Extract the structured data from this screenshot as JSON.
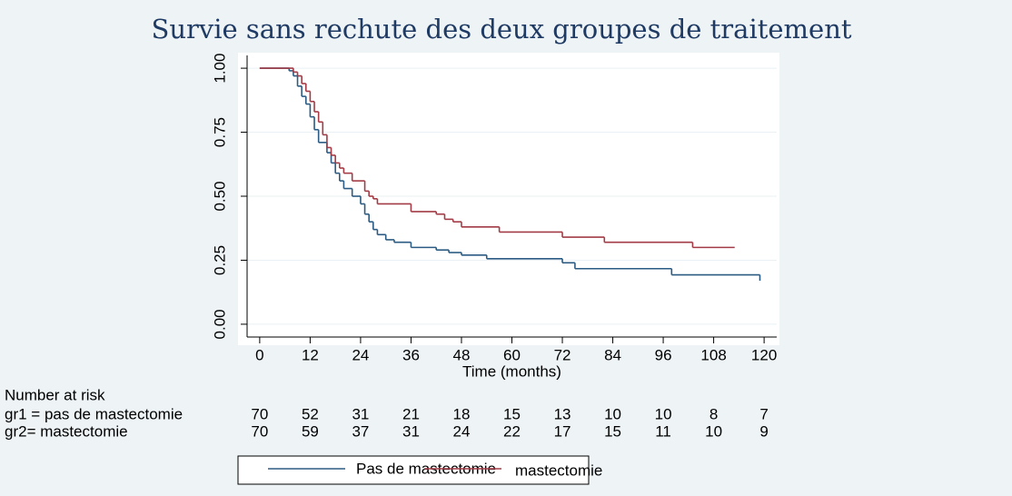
{
  "chart_data": {
    "type": "km-step",
    "title": "Survie sans rechute des deux groupes de traitement",
    "xlabel": "Time (months)",
    "xlim": [
      -3,
      123
    ],
    "ylim": [
      -0.05,
      1.05
    ],
    "xticks": [
      0,
      12,
      24,
      36,
      48,
      60,
      72,
      84,
      96,
      108,
      120
    ],
    "yticks": [
      {
        "value": 0,
        "label": "0.00"
      },
      0.25,
      {
        "value": 0.5,
        "label": "0.50"
      },
      0.75,
      {
        "value": 1,
        "label": "1.00"
      }
    ],
    "grid": true,
    "series": [
      {
        "name": "Pas de mastectomie",
        "color": "#2b5b82",
        "x": [
          0,
          7,
          8,
          9,
          10,
          11,
          12,
          13,
          14,
          16,
          17,
          18,
          19,
          20,
          22,
          24,
          25,
          26,
          27,
          28,
          30,
          32,
          36,
          42,
          45,
          48,
          54,
          72,
          75,
          98,
          119
        ],
        "values": [
          1.0,
          0.99,
          0.97,
          0.93,
          0.89,
          0.86,
          0.81,
          0.76,
          0.71,
          0.67,
          0.63,
          0.59,
          0.56,
          0.53,
          0.5,
          0.47,
          0.43,
          0.4,
          0.37,
          0.35,
          0.33,
          0.32,
          0.3,
          0.29,
          0.28,
          0.27,
          0.256,
          0.24,
          0.217,
          0.193,
          0.17
        ]
      },
      {
        "name": "mastectomie",
        "color": "#a23b45",
        "x": [
          0,
          8,
          9,
          10,
          11,
          12,
          13,
          14,
          15,
          16,
          17,
          18,
          19,
          20,
          22,
          25,
          26,
          27,
          28,
          36,
          42,
          44,
          46,
          48,
          57,
          72,
          82,
          103,
          113
        ],
        "values": [
          1.0,
          0.985,
          0.97,
          0.94,
          0.91,
          0.87,
          0.83,
          0.79,
          0.74,
          0.69,
          0.66,
          0.63,
          0.61,
          0.59,
          0.56,
          0.52,
          0.5,
          0.49,
          0.47,
          0.44,
          0.43,
          0.41,
          0.4,
          0.38,
          0.36,
          0.34,
          0.32,
          0.3,
          0.3
        ]
      }
    ],
    "risk_table": {
      "title": "Number at risk",
      "rows": [
        {
          "label": "gr1 = pas de mastectomie",
          "values": [
            "70",
            "52",
            "31",
            "21",
            "18",
            "15",
            "13",
            "10",
            "10",
            "8",
            "7"
          ]
        },
        {
          "label": "gr2= mastectomie",
          "values": [
            "70",
            "59",
            "37",
            "31",
            "24",
            "22",
            "17",
            "15",
            "11",
            "10",
            "9"
          ]
        }
      ]
    }
  }
}
